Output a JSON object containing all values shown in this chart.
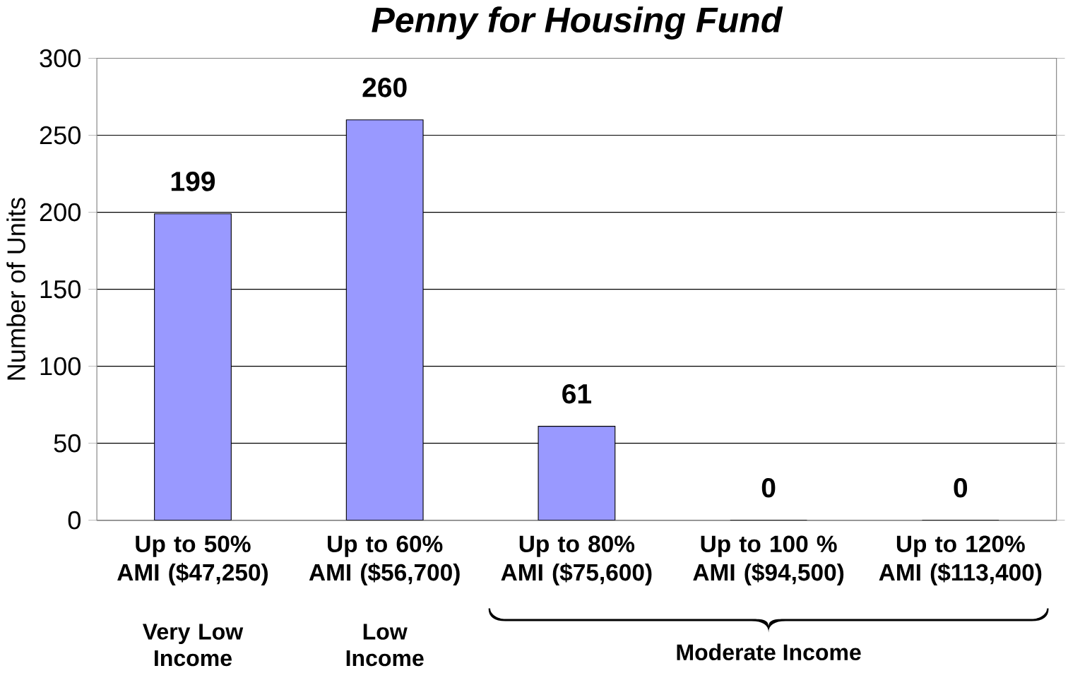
{
  "chart_data": {
    "type": "bar",
    "title": "Penny for Housing Fund",
    "ylabel": "Number of Units",
    "categories": [
      "Up to 50% AMI ($47,250)",
      "Up to 60% AMI ($56,700)",
      "Up to 80% AMI ($75,600)",
      "Up to 100 % AMI ($94,500)",
      "Up to 120% AMI ($113,400)"
    ],
    "values": [
      199,
      260,
      61,
      0,
      0
    ],
    "color": "#9999ff",
    "ylim": [
      0,
      300
    ],
    "yticks": [
      0,
      50,
      100,
      150,
      200,
      250,
      300
    ],
    "grid": "y",
    "data_labels": true,
    "annotations": [
      "Very Low Income",
      "Low Income",
      "Moderate Income"
    ]
  }
}
